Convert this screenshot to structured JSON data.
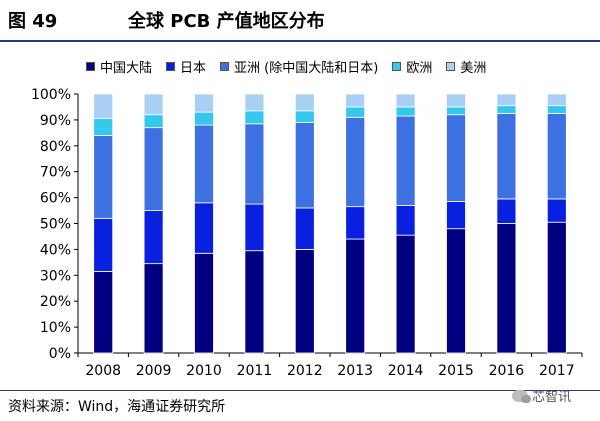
{
  "figure": {
    "number": "图 49",
    "title": "全球 PCB 产值地区分布",
    "source": "资料来源：Wind，海通证券研究所",
    "watermark": "芯智讯"
  },
  "chart_data": {
    "type": "bar",
    "stacked": true,
    "categories": [
      "2008",
      "2009",
      "2010",
      "2011",
      "2012",
      "2013",
      "2014",
      "2015",
      "2016",
      "2017"
    ],
    "series": [
      {
        "name": "中国大陆",
        "color": "#000080",
        "values": [
          31.5,
          34.5,
          38.5,
          39.5,
          40,
          44,
          45.5,
          48,
          50,
          50.5
        ]
      },
      {
        "name": "日本",
        "color": "#0a20e0",
        "values": [
          20.5,
          20.5,
          19.5,
          18,
          16,
          12.5,
          11.5,
          10.5,
          9.5,
          9
        ]
      },
      {
        "name": "亚洲 (除中国大陆和日本)",
        "color": "#3d70e0",
        "values": [
          32,
          32,
          30,
          31,
          33,
          34.5,
          34.5,
          33.5,
          33,
          33
        ]
      },
      {
        "name": "欧洲",
        "color": "#33c8ec",
        "values": [
          6.5,
          5,
          5,
          5,
          4.5,
          4,
          3.5,
          3,
          3,
          3
        ]
      },
      {
        "name": "美洲",
        "color": "#a8d0f4",
        "values": [
          9.5,
          8,
          7,
          6.5,
          6.5,
          5,
          5,
          5,
          4.5,
          4.5
        ]
      }
    ],
    "ylim": [
      0,
      100
    ],
    "yticks": [
      "0%",
      "10%",
      "20%",
      "30%",
      "40%",
      "50%",
      "60%",
      "70%",
      "80%",
      "90%",
      "100%"
    ],
    "xlabel": "",
    "ylabel": "",
    "grid": false,
    "legend_position": "top"
  }
}
